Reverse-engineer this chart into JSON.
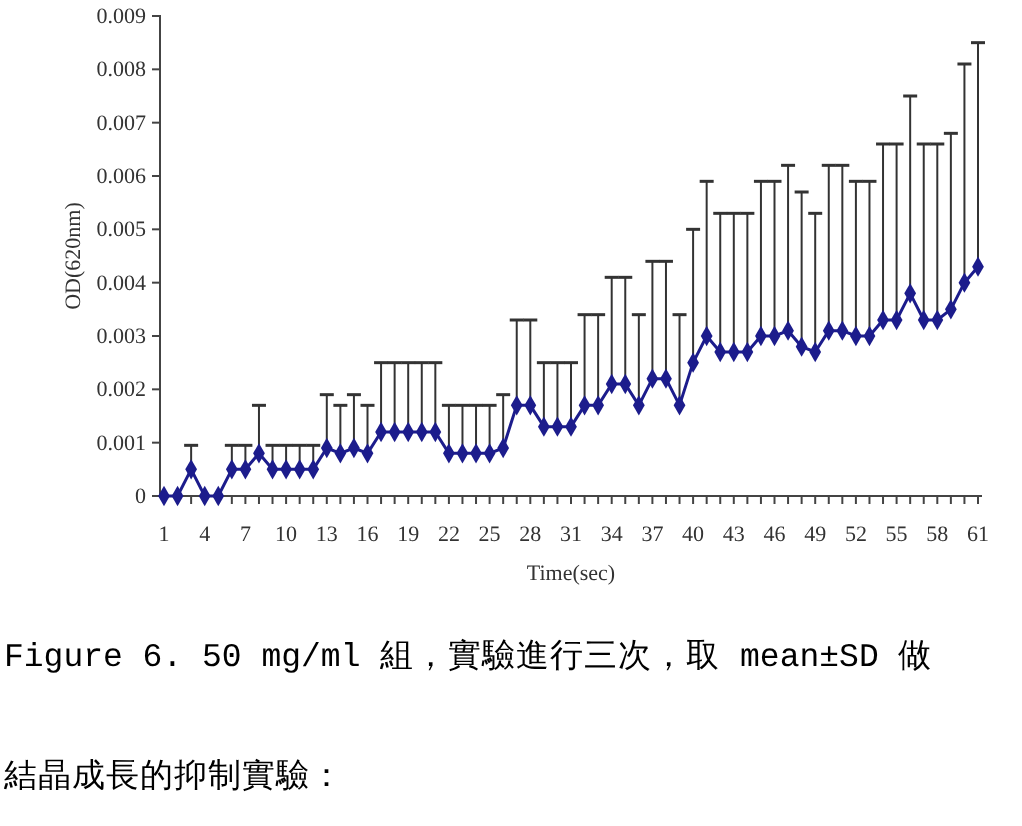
{
  "chart_data": {
    "type": "line",
    "xlabel": "Time(sec)",
    "ylabel": "OD(620nm)",
    "categories": [
      "1",
      null,
      null,
      "4",
      null,
      null,
      "7",
      null,
      null,
      "10",
      null,
      null,
      "13",
      null,
      null,
      "16",
      null,
      null,
      "19",
      null,
      null,
      "22",
      null,
      null,
      "25",
      null,
      null,
      "28",
      null,
      null,
      "31",
      null,
      null,
      "34",
      null,
      null,
      "37",
      null,
      null,
      "40",
      null,
      null,
      "43",
      null,
      null,
      "46",
      null,
      null,
      "49",
      null,
      null,
      "52",
      null,
      null,
      "55",
      null,
      null,
      "58",
      null,
      null,
      "61"
    ],
    "series": [
      {
        "color": "#1c1c8c",
        "values": [
          0,
          0,
          0.0005,
          0,
          0,
          0.0005,
          0.0005,
          0.0008,
          0.0005,
          0.0005,
          0.0005,
          0.0005,
          0.0009,
          0.0008,
          0.0009,
          0.0008,
          0.0012,
          0.0012,
          0.0012,
          0.0012,
          0.0012,
          0.0008,
          0.0008,
          0.0008,
          0.0008,
          0.0009,
          0.0017,
          0.0017,
          0.0013,
          0.0013,
          0.0013,
          0.0017,
          0.0017,
          0.0021,
          0.0021,
          0.0017,
          0.0022,
          0.0022,
          0.0017,
          0.0025,
          0.003,
          0.0027,
          0.0027,
          0.0027,
          0.003,
          0.003,
          0.0031,
          0.0028,
          0.0027,
          0.0031,
          0.0031,
          0.003,
          0.003,
          0.0033,
          0.0033,
          0.0038,
          0.0033,
          0.0033,
          0.0035,
          0.004,
          0.0043
        ],
        "errors": [
          null,
          null,
          [
            0.0005,
            0.00095
          ],
          null,
          null,
          [
            0.0005,
            0.00095
          ],
          [
            0.0005,
            0.00095
          ],
          [
            0.0008,
            0.0017
          ],
          [
            0.0005,
            0.00095
          ],
          [
            0.0005,
            0.00095
          ],
          [
            0.0005,
            0.00095
          ],
          [
            0.0005,
            0.00095
          ],
          [
            0.0009,
            0.0019
          ],
          [
            0.0008,
            0.0017
          ],
          [
            0.0009,
            0.0019
          ],
          [
            0.0008,
            0.0017
          ],
          [
            0.0012,
            0.0025
          ],
          [
            0.0012,
            0.0025
          ],
          [
            0.0012,
            0.0025
          ],
          [
            0.0012,
            0.0025
          ],
          [
            0.0012,
            0.0025
          ],
          [
            0.0008,
            0.0017
          ],
          [
            0.0008,
            0.0017
          ],
          [
            0.0008,
            0.0017
          ],
          [
            0.0008,
            0.0017
          ],
          [
            0.0009,
            0.0019
          ],
          [
            0.0017,
            0.0033
          ],
          [
            0.0017,
            0.0033
          ],
          [
            0.0013,
            0.0025
          ],
          [
            0.0013,
            0.0025
          ],
          [
            0.0013,
            0.0025
          ],
          [
            0.0017,
            0.0034
          ],
          [
            0.0017,
            0.0034
          ],
          [
            0.0021,
            0.0041
          ],
          [
            0.0021,
            0.0041
          ],
          [
            0.0017,
            0.0034
          ],
          [
            0.0022,
            0.0044
          ],
          [
            0.0022,
            0.0044
          ],
          [
            0.0017,
            0.0034
          ],
          [
            0.0025,
            0.005
          ],
          [
            0.003,
            0.0059
          ],
          [
            0.0027,
            0.0053
          ],
          [
            0.0027,
            0.0053
          ],
          [
            0.0027,
            0.0053
          ],
          [
            0.003,
            0.0059
          ],
          [
            0.003,
            0.0059
          ],
          [
            0.0031,
            0.0062
          ],
          [
            0.0028,
            0.0057
          ],
          [
            0.0027,
            0.0053
          ],
          [
            0.0031,
            0.0062
          ],
          [
            0.0031,
            0.0062
          ],
          [
            0.003,
            0.0059
          ],
          [
            0.003,
            0.0059
          ],
          [
            0.0033,
            0.0066
          ],
          [
            0.0033,
            0.0066
          ],
          [
            0.0038,
            0.0075
          ],
          [
            0.0033,
            0.0066
          ],
          [
            0.0033,
            0.0066
          ],
          [
            0.0035,
            0.0068
          ],
          [
            0.004,
            0.0081
          ],
          [
            0.0043,
            0.0085
          ]
        ]
      }
    ],
    "ylim": [
      0,
      0.009
    ],
    "yticks": [
      0,
      0.001,
      0.002,
      0.003,
      0.004,
      0.005,
      0.006,
      0.007,
      0.008,
      0.009
    ],
    "marker": "diamond",
    "grid": false,
    "annotations": [
      "Figure 6. 50 mg/ml 組，實驗進行三次，取 mean±SD 做",
      "結晶成長的抑制實驗："
    ]
  }
}
